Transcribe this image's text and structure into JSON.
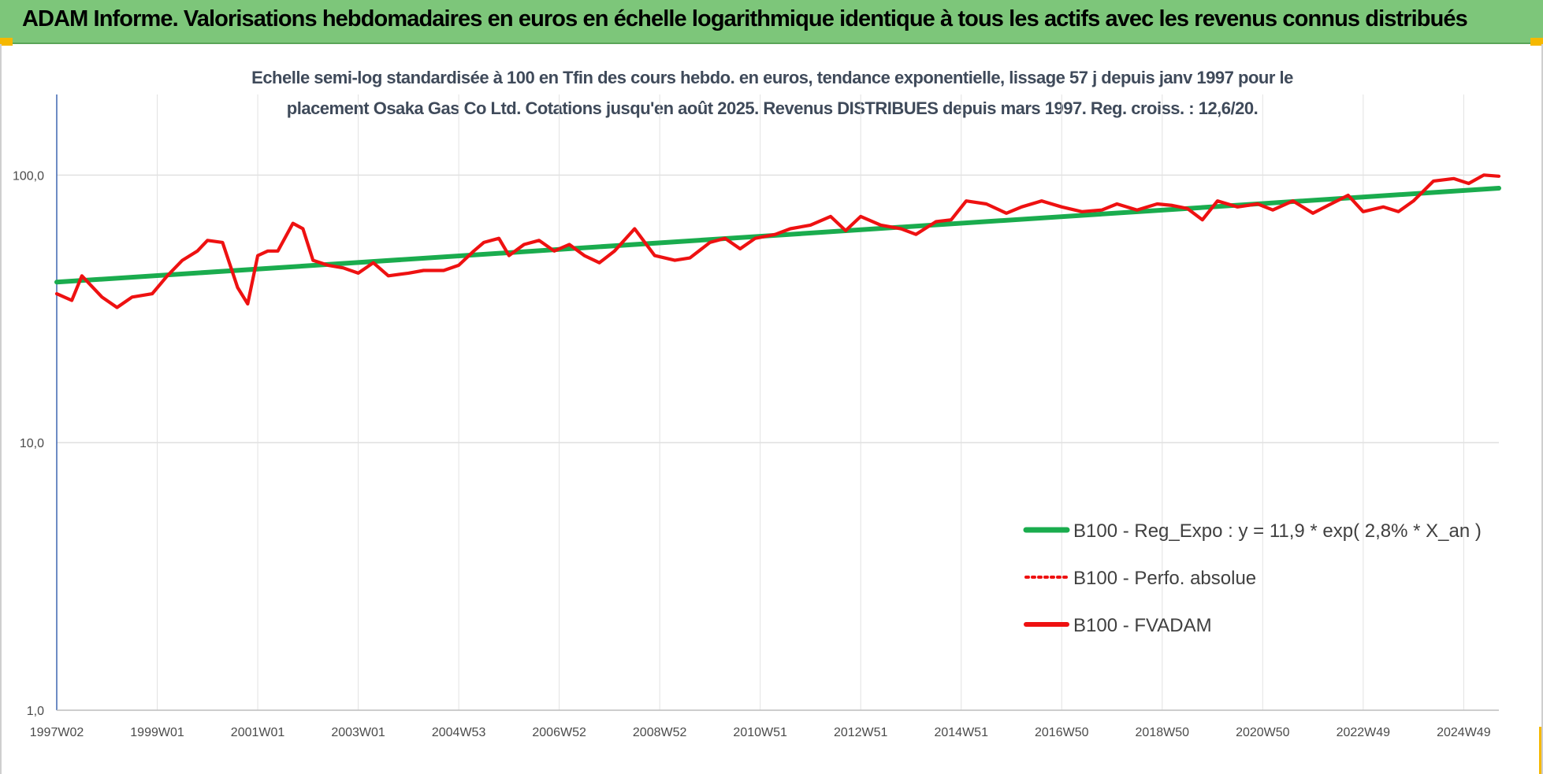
{
  "banner": {
    "title": "ADAM Informe. Valorisations hebdomadaires en euros en échelle logarithmique identique à tous les actifs avec les revenus connus distribués"
  },
  "colors": {
    "banner_bg": "#7dc67a",
    "accent_corner": "#f5b800",
    "trend": "#1aac4e",
    "series": "#ee1111"
  },
  "chart_data": {
    "type": "line",
    "title_line1": "Echelle semi-log standardisée à 100 en Tfin des cours hebdo. en euros, tendance exponentielle, lissage 57 j depuis janv 1997 pour le",
    "title_line2": "placement Osaka Gas Co Ltd. Cotations jusqu'en août 2025. Revenus DISTRIBUES depuis mars 1997. Reg. croiss. : 12,6/20.",
    "y_scale": "log",
    "ylim": [
      1,
      200
    ],
    "y_ticks": [
      1,
      10,
      100
    ],
    "y_tick_labels": [
      "1,0",
      "10,0",
      "100,0"
    ],
    "xlim": [
      1997.0,
      2025.7
    ],
    "x_ticks": [
      1997.0,
      1999.0,
      2001.0,
      2003.0,
      2005.0,
      2007.0,
      2009.0,
      2011.0,
      2013.0,
      2015.0,
      2017.0,
      2019.0,
      2021.0,
      2023.0,
      2025.0
    ],
    "x_tick_labels": [
      "1997W02",
      "1999W01",
      "2001W01",
      "2003W01",
      "2004W53",
      "2006W52",
      "2008W52",
      "2010W51",
      "2012W51",
      "2014W51",
      "2016W50",
      "2018W50",
      "2020W50",
      "2022W49",
      "2024W49"
    ],
    "grid": true,
    "legend_position": "bottom-right",
    "series": [
      {
        "name": "B100 - Reg_Expo : y = 11,9 * exp( 2,8% *  X_an )",
        "style": "solid-thick",
        "x": [
          1997.0,
          2025.7
        ],
        "values": [
          39.8,
          89.3
        ]
      },
      {
        "name": "B100 - Perfo. absolue",
        "style": "dotted",
        "x": [],
        "values": []
      },
      {
        "name": "B100 - FVADAM",
        "style": "solid",
        "x": [
          1997.0,
          1997.3,
          1997.5,
          1997.9,
          1998.2,
          1998.5,
          1998.9,
          1999.2,
          1999.5,
          1999.8,
          2000.0,
          2000.3,
          2000.6,
          2000.8,
          2001.0,
          2001.2,
          2001.4,
          2001.7,
          2001.9,
          2002.1,
          2002.4,
          2002.7,
          2003.0,
          2003.3,
          2003.6,
          2004.0,
          2004.3,
          2004.7,
          2005.0,
          2005.3,
          2005.5,
          2005.8,
          2006.0,
          2006.3,
          2006.6,
          2006.9,
          2007.2,
          2007.5,
          2007.8,
          2008.1,
          2008.5,
          2008.9,
          2009.3,
          2009.6,
          2010.0,
          2010.3,
          2010.6,
          2010.9,
          2011.3,
          2011.6,
          2012.0,
          2012.4,
          2012.7,
          2013.0,
          2013.4,
          2013.8,
          2014.1,
          2014.5,
          2014.8,
          2015.1,
          2015.5,
          2015.9,
          2016.2,
          2016.6,
          2017.0,
          2017.4,
          2017.8,
          2018.1,
          2018.5,
          2018.9,
          2019.2,
          2019.5,
          2019.8,
          2020.1,
          2020.5,
          2020.9,
          2021.2,
          2021.6,
          2022.0,
          2022.3,
          2022.7,
          2023.0,
          2023.4,
          2023.7,
          2024.0,
          2024.4,
          2024.8,
          2025.1,
          2025.4,
          2025.7
        ],
        "values": [
          36,
          34,
          42,
          35,
          32,
          35,
          36,
          42,
          48,
          52,
          57,
          56,
          38,
          33,
          50,
          52,
          52,
          66,
          63,
          48,
          46,
          45,
          43,
          47,
          42,
          43,
          44,
          44,
          46,
          52,
          56,
          58,
          50,
          55,
          57,
          52,
          55,
          50,
          47,
          52,
          63,
          50,
          48,
          49,
          56,
          58,
          53,
          58,
          60,
          63,
          65,
          70,
          62,
          70,
          65,
          63,
          60,
          67,
          68,
          80,
          78,
          72,
          76,
          80,
          76,
          73,
          74,
          78,
          74,
          78,
          77,
          75,
          68,
          80,
          76,
          78,
          74,
          80,
          72,
          77,
          84,
          73,
          76,
          73,
          80,
          95,
          97,
          93,
          100,
          99
        ]
      }
    ]
  }
}
